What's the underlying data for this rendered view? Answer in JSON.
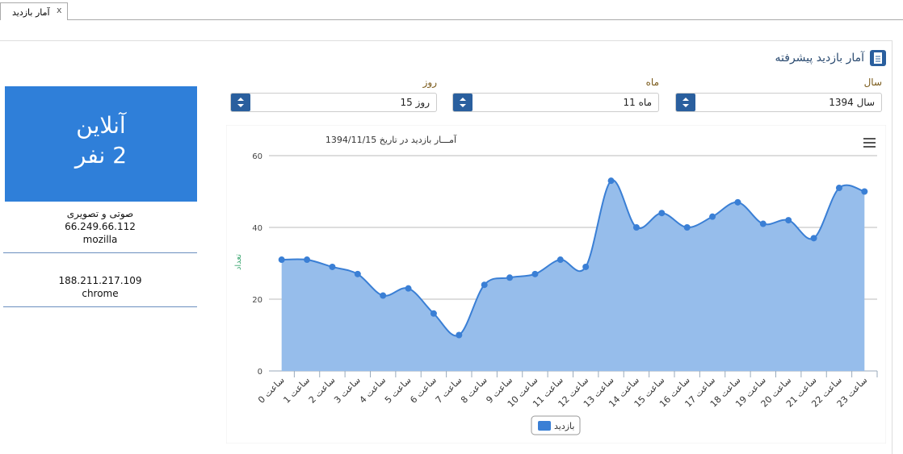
{
  "tab": {
    "title": "آمار بازدید",
    "close": "x"
  },
  "header": {
    "title": "آمار بازدید پیشرفته"
  },
  "filters": [
    {
      "label": "سال",
      "value": "سال 1394"
    },
    {
      "label": "ماه",
      "value": "ماه 11"
    },
    {
      "label": "روز",
      "value": "روز 15"
    }
  ],
  "online": {
    "title": "آنلاین",
    "count": "2 نفر",
    "visitors": [
      {
        "title": "صوتی و تصویری",
        "ip": "66.249.66.112",
        "browser": "mozilla"
      },
      {
        "ip": "188.211.217.109",
        "browser": "chrome"
      }
    ]
  },
  "chart_data": {
    "type": "area",
    "title": "آمـــار بازدید در تاریخ 1394/11/15",
    "y_label": "تعداد",
    "categories": [
      "ساعت 0",
      "ساعت 1",
      "ساعت 2",
      "ساعت 3",
      "ساعت 4",
      "ساعت 5",
      "ساعت 6",
      "ساعت 7",
      "ساعت 8",
      "ساعت 9",
      "ساعت 10",
      "ساعت 11",
      "ساعت 12",
      "ساعت 13",
      "ساعت 14",
      "ساعت 15",
      "ساعت 16",
      "ساعت 17",
      "ساعت 18",
      "ساعت 19",
      "ساعت 20",
      "ساعت 21",
      "ساعت 22",
      "ساعت 23"
    ],
    "series": [
      {
        "name": "بازدید",
        "color": "#3a7fd5",
        "fill": "#96bdeb",
        "values": [
          31,
          31,
          29,
          27,
          21,
          23,
          16,
          10,
          24,
          26,
          27,
          31,
          29,
          53,
          40,
          44,
          40,
          43,
          47,
          41,
          42,
          37,
          51,
          50
        ]
      }
    ],
    "ylim": [
      0,
      60
    ],
    "yticks": [
      0,
      20,
      40,
      60
    ],
    "grid": true
  }
}
